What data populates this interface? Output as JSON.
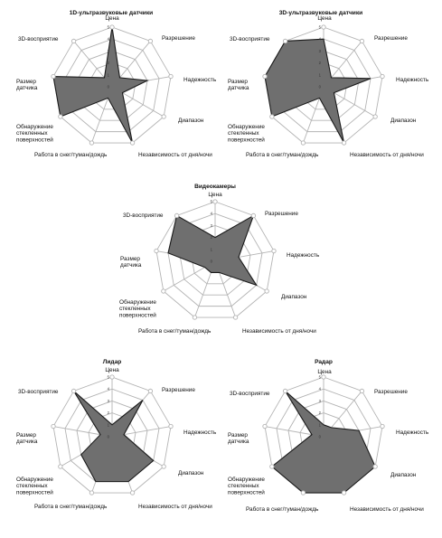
{
  "colors": {
    "fill": "#6f6f6f",
    "stroke": "#1a1a1a",
    "grid": "#b4b4b4",
    "marker": "#ffffff"
  },
  "chart_data": [
    {
      "type": "radar",
      "title": "1D-ультразвуковые датчики",
      "axes": [
        "Цена",
        "Разрешение",
        "Надежность",
        "Диапазон",
        "Независимость от дня/ночи",
        "Работа в снег/туман/дождь",
        "Обнаружение стекленных поверхностей",
        "Размер датчика",
        "3D-восприятие"
      ],
      "rticks": [
        "0",
        "1",
        "2",
        "3",
        "4",
        "5"
      ],
      "rmax": 5,
      "grid": true,
      "values": [
        5,
        1,
        3,
        1,
        5,
        1,
        5,
        5,
        1
      ]
    },
    {
      "type": "radar",
      "title": "3D-ультразвуковые датчики",
      "axes": [
        "Цена",
        "Разрешение",
        "Надежность",
        "Диапазон",
        "Независимость от дня/ночи",
        "Работа в снег/туман/дождь",
        "Обнаружение стекленных поверхностей",
        "Размер датчика",
        "3D-восприятие"
      ],
      "rticks": [
        "0",
        "1",
        "2",
        "3",
        "4",
        "5"
      ],
      "rmax": 5,
      "grid": true,
      "values": [
        4,
        1,
        4,
        1,
        5,
        1,
        5,
        5,
        5
      ]
    },
    {
      "type": "radar",
      "title": "Видеокамеры",
      "axes": [
        "Цена",
        "Разрешение",
        "Надежность",
        "Диапазон",
        "Независимость от дня/ночи",
        "Работа в снег/туман/дождь",
        "Обнаружение стекленных поверхностей",
        "Размер датчика",
        "3D-восприятие"
      ],
      "rticks": [
        "0",
        "1",
        "2",
        "3",
        "4",
        "5"
      ],
      "rmax": 5,
      "grid": true,
      "values": [
        2,
        5,
        2,
        4,
        1,
        1,
        1,
        4,
        5
      ]
    },
    {
      "type": "radar",
      "title": "Лидар",
      "axes": [
        "Цена",
        "Разрешение",
        "Надежность",
        "Диапазон",
        "Независимость от дня/ночи",
        "Работа в снег/туман/дождь",
        "Обнаружение стекленных поверхностей",
        "Размер датчика",
        "3D-восприятие"
      ],
      "rticks": [
        "0",
        "1",
        "2",
        "3",
        "4",
        "5"
      ],
      "rmax": 5,
      "grid": true,
      "values": [
        1,
        4,
        1,
        4,
        4,
        4,
        3,
        1,
        5
      ]
    },
    {
      "type": "radar",
      "title": "Радар",
      "axes": [
        "Цена",
        "Разрешение",
        "Надежность",
        "Диапазон",
        "Независимость от дня/ночи",
        "Работа в снег/туман/дождь",
        "Обнаружение стекленных поверхностей",
        "Размер датчика",
        "3D-восприятие"
      ],
      "rticks": [
        "0",
        "1",
        "2",
        "3",
        "4",
        "5"
      ],
      "rmax": 5,
      "grid": true,
      "values": [
        1,
        1,
        3,
        5,
        5,
        5,
        5,
        1,
        5
      ]
    }
  ]
}
